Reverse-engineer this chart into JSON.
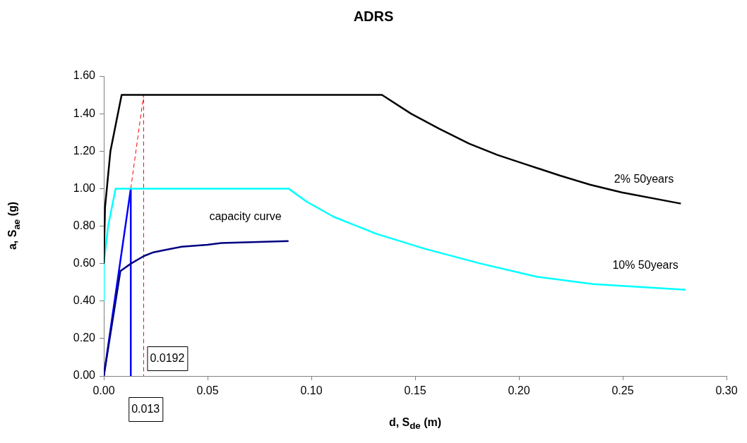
{
  "chart_data": {
    "type": "line",
    "title": "ADRS",
    "xlabel": "d, S$_{de}$ (m)",
    "ylabel": "a, S$_{ae}$  (g)",
    "xlim": [
      0,
      0.3
    ],
    "xticks": [
      {
        "value": 0,
        "label": "0.00"
      },
      {
        "value": 0.05,
        "label": "0.05"
      },
      {
        "value": 0.1,
        "label": "0.10"
      },
      {
        "value": 0.15,
        "label": "0.15"
      },
      {
        "value": 0.2,
        "label": "0.20"
      },
      {
        "value": 0.25,
        "label": "0.25"
      },
      {
        "value": 0.3,
        "label": "0.30"
      }
    ],
    "ylim": [
      0,
      1.6
    ],
    "yticks": [
      {
        "value": 0,
        "label": "0.00"
      },
      {
        "value": 0.2,
        "label": "0.20"
      },
      {
        "value": 0.4,
        "label": "0.40"
      },
      {
        "value": 0.6,
        "label": "0.60"
      },
      {
        "value": 0.8,
        "label": "0.80"
      },
      {
        "value": 1,
        "label": "1.00"
      },
      {
        "value": 1.2,
        "label": "1.20"
      },
      {
        "value": 1.4,
        "label": "1.40"
      },
      {
        "value": 1.6,
        "label": "1.60"
      }
    ],
    "grid": false,
    "legend": false,
    "marker": "none",
    "series": [
      {
        "name": "2% 50years",
        "color": "#000000",
        "x": [
          0,
          0.0006,
          0.0032,
          0.0086,
          0.134,
          0.148,
          0.1615,
          0.176,
          0.1896,
          0.2032,
          0.2196,
          0.2345,
          0.2495,
          0.278
        ],
        "values": [
          0.6,
          0.9,
          1.2,
          1.5,
          1.5,
          1.4,
          1.32,
          1.24,
          1.18,
          1.13,
          1.07,
          1.02,
          0.98,
          0.92
        ]
      },
      {
        "name": "10% 50years",
        "color": "#00ffff",
        "x": [
          0,
          0,
          0.0021,
          0.0057,
          0.089,
          0.0978,
          0.1107,
          0.131,
          0.1543,
          0.1815,
          0.2085,
          0.2358,
          0.2802
        ],
        "values": [
          0.4,
          0.6,
          0.8,
          1.0,
          1.0,
          0.93,
          0.85,
          0.76,
          0.68,
          0.6,
          0.53,
          0.49,
          0.46
        ]
      },
      {
        "name": "capacity curve",
        "color": "#000080",
        "x": [
          0,
          0.008,
          0.0131,
          0.0193,
          0.0239,
          0.0284,
          0.0375,
          0.0499,
          0.0567,
          0.089
        ],
        "values": [
          0,
          0.56,
          0.6,
          0.64,
          0.66,
          0.67,
          0.69,
          0.7,
          0.71,
          0.72
        ]
      },
      {
        "color": "#0000ff",
        "x": [
          0,
          0.013,
          0.013
        ],
        "values": [
          0,
          1.0,
          0
        ]
      },
      {
        "color": "#ff0000",
        "line_style": "dashed",
        "x": [
          0.013,
          0.0192,
          0.0192
        ],
        "values": [
          1.0,
          1.5,
          0
        ]
      }
    ],
    "annotations": [
      {
        "text": "0.0192",
        "x": 0.0192,
        "y": 0.03
      },
      {
        "text": "0.013",
        "x": 0.013,
        "y": 0
      }
    ]
  }
}
